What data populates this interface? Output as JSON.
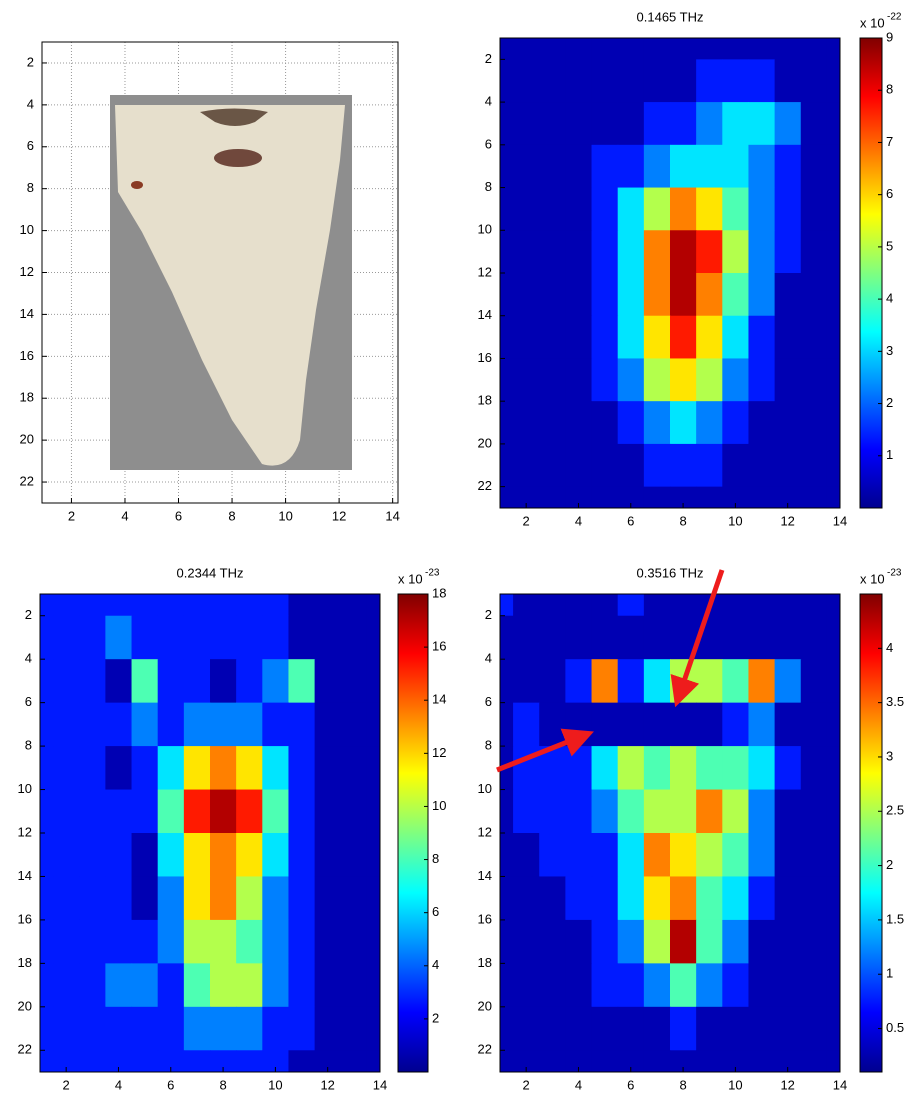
{
  "chart_data": [
    {
      "type": "image",
      "xlim": [
        0.9,
        14.2
      ],
      "ylim": [
        1,
        23
      ],
      "y_reversed": true,
      "xticks": [
        2,
        4,
        6,
        8,
        10,
        12,
        14
      ],
      "yticks": [
        2,
        4,
        6,
        8,
        10,
        12,
        14,
        16,
        18,
        20,
        22
      ],
      "grid": true
    },
    {
      "type": "heatmap",
      "title": "0.1465 THz",
      "xlim": [
        1,
        14
      ],
      "ylim": [
        1,
        23
      ],
      "y_reversed": true,
      "xticks": [
        2,
        4,
        6,
        8,
        10,
        12,
        14
      ],
      "yticks": [
        2,
        4,
        6,
        8,
        10,
        12,
        14,
        16,
        18,
        20,
        22
      ],
      "colormap": "jet",
      "levels": 10,
      "zlim": [
        0,
        9
      ],
      "colorbar_ticks": [
        1,
        2,
        3,
        4,
        5,
        6,
        7,
        8,
        9
      ],
      "colorbar_label": "x 10",
      "colorbar_exponent": "-22",
      "x": [
        1,
        2,
        3,
        4,
        5,
        6,
        7,
        8,
        9,
        10,
        11,
        12,
        13,
        14
      ],
      "y": [
        1,
        3,
        5,
        7,
        9,
        11,
        13,
        15,
        17,
        19,
        21,
        23
      ],
      "z": [
        [
          0.3,
          0.3,
          0.3,
          0.3,
          0.3,
          0.3,
          0.3,
          0.3,
          0.3,
          0.3,
          0.3,
          0.3,
          0.3,
          0.3
        ],
        [
          0.3,
          0.3,
          0.3,
          0.3,
          0.3,
          0.3,
          0.3,
          0.3,
          1,
          1.2,
          1.2,
          0.8,
          0.3,
          0.3
        ],
        [
          0.3,
          0.3,
          0.3,
          0.3,
          0.3,
          0.3,
          1,
          1.5,
          2,
          3,
          3,
          2,
          0.3,
          0.3
        ],
        [
          0.3,
          0.3,
          0.3,
          0.3,
          1,
          1.5,
          2.5,
          3,
          3,
          3,
          2.5,
          1.5,
          0.3,
          0.3
        ],
        [
          0.3,
          0.3,
          0.3,
          0.3,
          1.5,
          3,
          5,
          6.5,
          6,
          4,
          2.5,
          1,
          0.3,
          0.3
        ],
        [
          0.3,
          0.3,
          0.3,
          0.3,
          1.5,
          3.5,
          7,
          9,
          7.5,
          4.5,
          2.5,
          1,
          0.3,
          0.3
        ],
        [
          0.3,
          0.3,
          0.3,
          0.3,
          1.5,
          3.5,
          7,
          8.5,
          7,
          4,
          2,
          0.8,
          0.3,
          0.3
        ],
        [
          0.3,
          0.3,
          0.3,
          0.3,
          1.2,
          3,
          6,
          7.5,
          6,
          3.5,
          1.5,
          0.3,
          0.3,
          0.3
        ],
        [
          0.3,
          0.3,
          0.3,
          0.3,
          1,
          2.5,
          4.5,
          5.5,
          4.5,
          2.5,
          1,
          0.3,
          0.3,
          0.3
        ],
        [
          0.3,
          0.3,
          0.3,
          0.3,
          0.3,
          1.5,
          2.5,
          3,
          2.5,
          1.5,
          0.3,
          0.3,
          0.3,
          0.3
        ],
        [
          0.3,
          0.3,
          0.3,
          0.3,
          0.3,
          0.3,
          1,
          1,
          1,
          0.3,
          0.3,
          0.3,
          0.3,
          0.3
        ],
        [
          0.3,
          0.3,
          0.3,
          0.3,
          0.3,
          0.3,
          0.3,
          0.3,
          0.3,
          0.3,
          0.3,
          0.3,
          0.3,
          0.3
        ]
      ]
    },
    {
      "type": "heatmap",
      "title": "0.2344 THz",
      "xlim": [
        1,
        14
      ],
      "ylim": [
        1,
        23
      ],
      "y_reversed": true,
      "xticks": [
        2,
        4,
        6,
        8,
        10,
        12,
        14
      ],
      "yticks": [
        2,
        4,
        6,
        8,
        10,
        12,
        14,
        16,
        18,
        20,
        22
      ],
      "colormap": "jet",
      "levels": 10,
      "zlim": [
        0,
        18
      ],
      "colorbar_ticks": [
        2,
        4,
        6,
        8,
        10,
        12,
        14,
        16,
        18
      ],
      "colorbar_label": "x 10",
      "colorbar_exponent": "-23",
      "x": [
        1,
        2,
        3,
        4,
        5,
        6,
        7,
        8,
        9,
        10,
        11,
        12,
        13,
        14
      ],
      "y": [
        1,
        3,
        5,
        7,
        9,
        11,
        13,
        15,
        17,
        19,
        21,
        23
      ],
      "z": [
        [
          3,
          3,
          3,
          3,
          3,
          3,
          3,
          3,
          3,
          3,
          1,
          1,
          1,
          1
        ],
        [
          3,
          3,
          3,
          4,
          3,
          3,
          3,
          2,
          3,
          3,
          1,
          1,
          1,
          1
        ],
        [
          3,
          3,
          3,
          1.5,
          8,
          3,
          3,
          1.5,
          3,
          5,
          8,
          1,
          1,
          1
        ],
        [
          3,
          3,
          3,
          3,
          4,
          3,
          4,
          5,
          4,
          3,
          3,
          1,
          1,
          1
        ],
        [
          3,
          3,
          3,
          1.5,
          3,
          7,
          12,
          13,
          12,
          7,
          3,
          1,
          1,
          1
        ],
        [
          3,
          3,
          3,
          3,
          3,
          8,
          16,
          18,
          15,
          8,
          3,
          1,
          1,
          1
        ],
        [
          3,
          3,
          3,
          3,
          1.5,
          6,
          12,
          13,
          11,
          6,
          3,
          1,
          1,
          1
        ],
        [
          3,
          3,
          3,
          3,
          1.5,
          5,
          12,
          13,
          10,
          5,
          3,
          1,
          1,
          1
        ],
        [
          3,
          3,
          3,
          3,
          3,
          4,
          9,
          10,
          8,
          4,
          3,
          1,
          1,
          1
        ],
        [
          3,
          3,
          3,
          4,
          4,
          3,
          8,
          10,
          9,
          5,
          3,
          1,
          1,
          1
        ],
        [
          3,
          3,
          3,
          3,
          3,
          3,
          4,
          5,
          5,
          3,
          3,
          1,
          1,
          1
        ],
        [
          3,
          3,
          3,
          3,
          3,
          3,
          3,
          3,
          3,
          3,
          1,
          1,
          1,
          1
        ]
      ]
    },
    {
      "type": "heatmap",
      "title": "0.3516 THz",
      "xlim": [
        1,
        14
      ],
      "ylim": [
        1,
        23
      ],
      "y_reversed": true,
      "xticks": [
        2,
        4,
        6,
        8,
        10,
        12,
        14
      ],
      "yticks": [
        2,
        4,
        6,
        8,
        10,
        12,
        14,
        16,
        18,
        20,
        22
      ],
      "colormap": "jet",
      "levels": 10,
      "zlim": [
        0.1,
        4.5
      ],
      "colorbar_ticks": [
        0.5,
        1,
        1.5,
        2,
        2.5,
        3,
        3.5,
        4
      ],
      "colorbar_label": "x 10",
      "colorbar_exponent": "-23",
      "x": [
        1,
        2,
        3,
        4,
        5,
        6,
        7,
        8,
        9,
        10,
        11,
        12,
        13,
        14
      ],
      "y": [
        1,
        3,
        5,
        7,
        9,
        11,
        13,
        15,
        17,
        19,
        21,
        23
      ],
      "z": [
        [
          0.8,
          0.4,
          0.4,
          0.4,
          0.4,
          0.8,
          0.4,
          0.4,
          0.4,
          0.4,
          0.4,
          0.4,
          0.4,
          0.4
        ],
        [
          0.4,
          0.4,
          0.4,
          0.4,
          0.4,
          0.4,
          0.4,
          0.4,
          0.4,
          0.4,
          0.4,
          0.4,
          0.4,
          0.4
        ],
        [
          0.4,
          0.4,
          0.4,
          0.8,
          3.5,
          0.8,
          1.5,
          2.5,
          2.5,
          2,
          3.5,
          1,
          0.4,
          0.4
        ],
        [
          0.4,
          0.8,
          0.4,
          0.4,
          0.4,
          0.4,
          0.3,
          0.4,
          0.4,
          0.8,
          1,
          0.4,
          0.4,
          0.4
        ],
        [
          0.4,
          0.8,
          0.8,
          0.8,
          1.5,
          2.5,
          2,
          2.5,
          2,
          2,
          1.5,
          0.8,
          0.4,
          0.4
        ],
        [
          0.4,
          0.8,
          0.8,
          0.8,
          1,
          2,
          2.5,
          2.5,
          3.5,
          2.5,
          1.2,
          0.4,
          0.4,
          0.4
        ],
        [
          0.4,
          0.4,
          0.8,
          0.8,
          0.8,
          1.5,
          3.5,
          3,
          2.5,
          2,
          1,
          0.4,
          0.4,
          0.4
        ],
        [
          0.4,
          0.4,
          0.4,
          0.8,
          0.8,
          1.5,
          3,
          3.5,
          2,
          1.5,
          0.8,
          0.4,
          0.4,
          0.4
        ],
        [
          0.4,
          0.4,
          0.4,
          0.4,
          0.8,
          1.2,
          2.5,
          4.5,
          2,
          1,
          0.4,
          0.4,
          0.4,
          0.4
        ],
        [
          0.4,
          0.4,
          0.4,
          0.4,
          0.8,
          0.8,
          1.2,
          2,
          1,
          0.8,
          0.4,
          0.4,
          0.4,
          0.4
        ],
        [
          0.4,
          0.4,
          0.4,
          0.4,
          0.4,
          0.4,
          0.4,
          0.8,
          0.4,
          0.4,
          0.4,
          0.4,
          0.4,
          0.4
        ],
        [
          0.4,
          0.4,
          0.4,
          0.4,
          0.4,
          0.4,
          0.4,
          0.4,
          0.4,
          0.4,
          0.4,
          0.4,
          0.4,
          0.4
        ]
      ]
    }
  ]
}
